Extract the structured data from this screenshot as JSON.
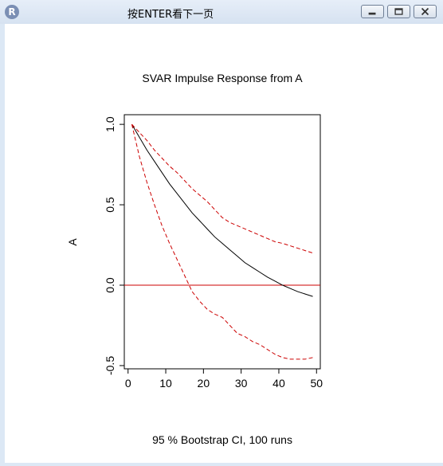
{
  "window": {
    "title": "按ENTER看下一页",
    "app_icon": "R"
  },
  "chart_data": {
    "type": "line",
    "title": "SVAR Impulse Response from A",
    "xlabel": "95 % Bootstrap CI,  100 runs",
    "ylabel": "A",
    "xlim": [
      -1,
      51
    ],
    "ylim": [
      -0.52,
      1.06
    ],
    "xticks": [
      "0",
      "10",
      "20",
      "30",
      "40",
      "50"
    ],
    "yticks": [
      "-0.5",
      "0.0",
      "0.5",
      "1.0"
    ],
    "grid": false,
    "colors": {
      "irf": "#000000",
      "ci": "#cc0000",
      "zero": "#cc0000"
    },
    "hline": 0,
    "x": [
      1,
      3,
      5,
      7,
      9,
      11,
      13,
      15,
      17,
      19,
      21,
      23,
      25,
      27,
      29,
      31,
      33,
      35,
      37,
      39,
      41,
      43,
      45,
      47,
      49
    ],
    "series": [
      {
        "values": [
          1.0,
          0.92,
          0.84,
          0.77,
          0.7,
          0.63,
          0.57,
          0.51,
          0.45,
          0.4,
          0.35,
          0.3,
          0.26,
          0.22,
          0.18,
          0.14,
          0.11,
          0.08,
          0.05,
          0.025,
          0.0,
          -0.02,
          -0.04,
          -0.055,
          -0.07
        ]
      },
      {
        "values": [
          1.0,
          0.95,
          0.9,
          0.84,
          0.79,
          0.74,
          0.7,
          0.65,
          0.6,
          0.56,
          0.52,
          0.47,
          0.42,
          0.39,
          0.37,
          0.35,
          0.33,
          0.31,
          0.29,
          0.27,
          0.26,
          0.245,
          0.23,
          0.215,
          0.2
        ]
      },
      {
        "values": [
          1.0,
          0.8,
          0.64,
          0.5,
          0.37,
          0.26,
          0.16,
          0.06,
          -0.04,
          -0.1,
          -0.15,
          -0.18,
          -0.2,
          -0.25,
          -0.3,
          -0.32,
          -0.35,
          -0.37,
          -0.4,
          -0.43,
          -0.45,
          -0.46,
          -0.46,
          -0.46,
          -0.45
        ]
      }
    ]
  }
}
